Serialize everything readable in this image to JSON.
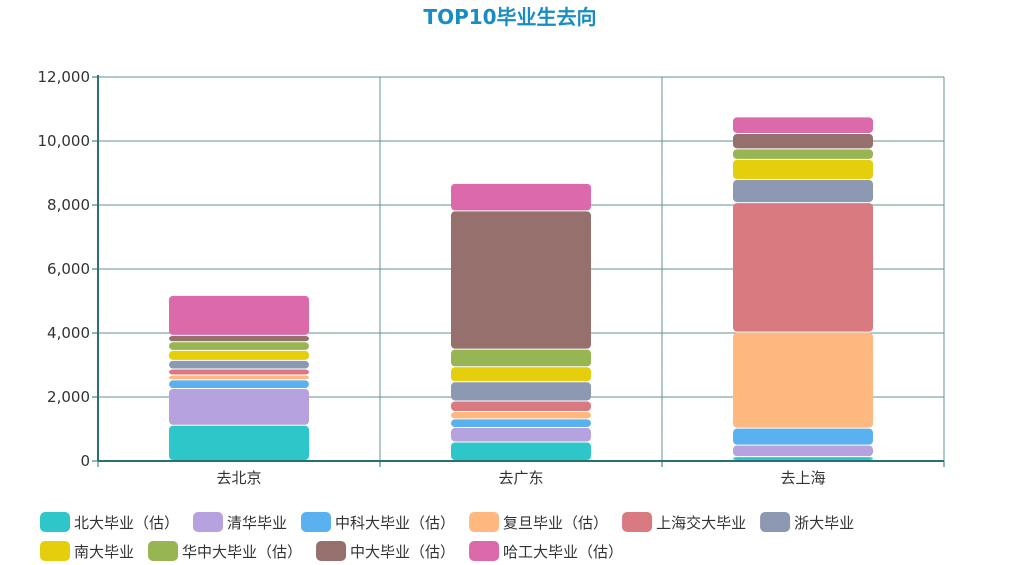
{
  "chart_data": {
    "type": "bar",
    "stacked": true,
    "title": "TOP10毕业生去向",
    "xlabel": "",
    "ylabel": "",
    "ylim": [
      0,
      12000
    ],
    "yticks": [
      "0",
      "2,000",
      "4,000",
      "6,000",
      "8,000",
      "10,000",
      "12,000"
    ],
    "ytick_values": [
      0,
      2000,
      4000,
      6000,
      8000,
      10000,
      12000
    ],
    "grid": true,
    "legend_position": "bottom",
    "categories": [
      "去北京",
      "去广东",
      "去上海"
    ],
    "series": [
      {
        "name": "北大毕业（估）",
        "color": "#2ec7c9",
        "values": [
          1100,
          580,
          120
        ]
      },
      {
        "name": "清华毕业",
        "color": "#b6a2de",
        "values": [
          1150,
          450,
          360
        ]
      },
      {
        "name": "中科大毕业（估）",
        "color": "#5ab1ef",
        "values": [
          270,
          270,
          530
        ]
      },
      {
        "name": "复旦毕业（估）",
        "color": "#ffb980",
        "values": [
          150,
          230,
          3000
        ]
      },
      {
        "name": "上海交大毕业",
        "color": "#d87a80",
        "values": [
          190,
          330,
          4050
        ]
      },
      {
        "name": "浙大毕业",
        "color": "#8d98b3",
        "values": [
          270,
          600,
          720
        ]
      },
      {
        "name": "南大毕业",
        "color": "#e5cf0d",
        "values": [
          310,
          470,
          630
        ]
      },
      {
        "name": "华中大毕业（估）",
        "color": "#97b552",
        "values": [
          270,
          550,
          330
        ]
      },
      {
        "name": "中大毕业（估）",
        "color": "#95706d",
        "values": [
          200,
          4320,
          480
        ]
      },
      {
        "name": "哈工大毕业（估）",
        "color": "#dc69aa",
        "values": [
          1250,
          860,
          520
        ]
      }
    ]
  }
}
